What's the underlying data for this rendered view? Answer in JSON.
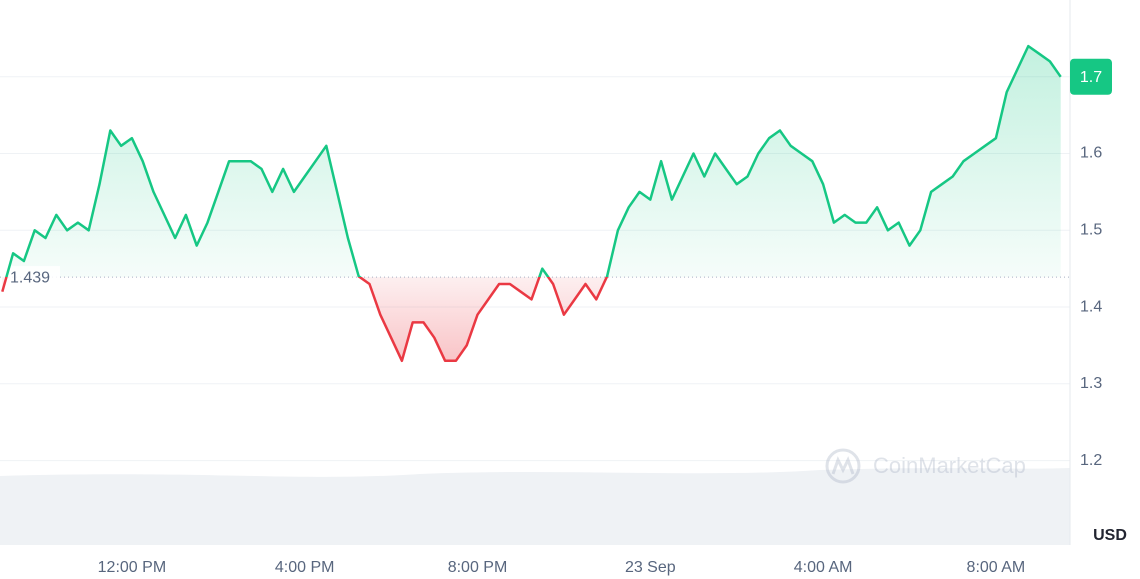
{
  "chart_data": {
    "type": "line",
    "categories": [
      null,
      null,
      null,
      null,
      null,
      null,
      null,
      null,
      null,
      null,
      null,
      null,
      "12:00 PM",
      null,
      null,
      null,
      null,
      null,
      null,
      null,
      null,
      null,
      null,
      null,
      null,
      null,
      null,
      null,
      "4:00 PM",
      null,
      null,
      null,
      null,
      null,
      null,
      null,
      null,
      null,
      null,
      null,
      null,
      null,
      null,
      null,
      "8:00 PM",
      null,
      null,
      null,
      null,
      null,
      null,
      null,
      null,
      null,
      null,
      null,
      null,
      null,
      null,
      null,
      "23 Sep",
      null,
      null,
      null,
      null,
      null,
      null,
      null,
      null,
      null,
      null,
      null,
      null,
      null,
      null,
      null,
      "4:00 AM",
      null,
      null,
      null,
      null,
      null,
      null,
      null,
      null,
      null,
      null,
      null,
      null,
      null,
      null,
      null,
      "8:00 AM",
      null,
      null,
      null,
      null,
      null,
      null
    ],
    "values": [
      1.42,
      1.47,
      1.46,
      1.5,
      1.49,
      1.52,
      1.5,
      1.51,
      1.5,
      1.56,
      1.63,
      1.61,
      1.62,
      1.59,
      1.55,
      1.52,
      1.49,
      1.52,
      1.48,
      1.51,
      1.55,
      1.59,
      1.59,
      1.59,
      1.58,
      1.55,
      1.58,
      1.55,
      1.57,
      1.59,
      1.61,
      1.55,
      1.49,
      1.44,
      1.43,
      1.39,
      1.36,
      1.33,
      1.38,
      1.38,
      1.36,
      1.33,
      1.33,
      1.35,
      1.39,
      1.41,
      1.43,
      1.43,
      1.42,
      1.41,
      1.45,
      1.43,
      1.39,
      1.41,
      1.43,
      1.41,
      1.44,
      1.5,
      1.53,
      1.55,
      1.54,
      1.59,
      1.54,
      1.57,
      1.6,
      1.57,
      1.6,
      1.58,
      1.56,
      1.57,
      1.6,
      1.62,
      1.63,
      1.61,
      1.6,
      1.59,
      1.56,
      1.51,
      1.52,
      1.51,
      1.51,
      1.53,
      1.5,
      1.51,
      1.48,
      1.5,
      1.55,
      1.56,
      1.57,
      1.59,
      1.6,
      1.61,
      1.62,
      1.68,
      1.71,
      1.74,
      1.73,
      1.72,
      1.7
    ],
    "color": "#16c784",
    "negative_color": "#ea3943",
    "baseline": 1.439,
    "ylim": [
      1.09,
      1.8
    ],
    "yticks": [
      1.2,
      1.3,
      1.4,
      1.5,
      1.6,
      1.7
    ],
    "grid": true,
    "unit": "USD",
    "watermark": "CoinMarketCap"
  }
}
